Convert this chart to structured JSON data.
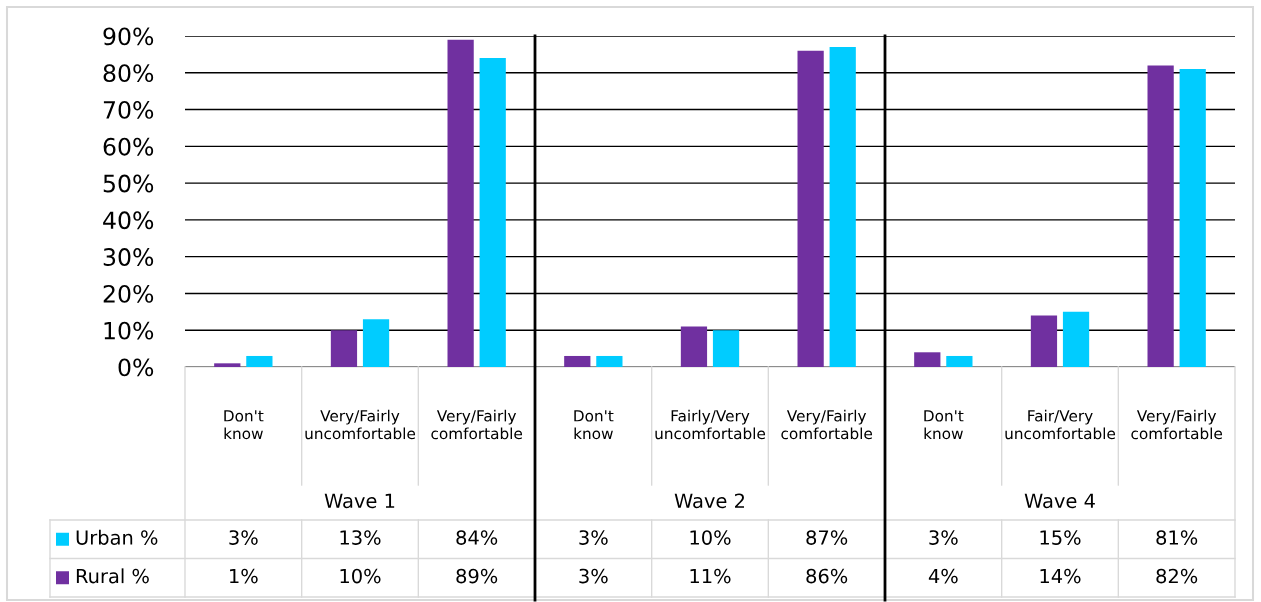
{
  "chart_data": {
    "type": "bar",
    "categories": [
      "Don't know",
      "Very/Fairly uncomfortable",
      "Very/Fairly comfortable",
      "Don't know",
      "Fairly/Very uncomfortable",
      "Very/Fairly comfortable",
      "Don't know",
      "Fair/Very uncomfortable",
      "Very/Fairly comfortable"
    ],
    "series": [
      {
        "name": "Rural %",
        "color": "#7030a0",
        "values": [
          1,
          10,
          89,
          3,
          11,
          86,
          4,
          14,
          82
        ],
        "value_labels": [
          "1%",
          "10%",
          "89%",
          "3%",
          "11%",
          "86%",
          "4%",
          "14%",
          "82%"
        ]
      },
      {
        "name": "Urban %",
        "color": "#00ccff",
        "values": [
          3,
          13,
          84,
          3,
          10,
          87,
          3,
          15,
          81
        ],
        "value_labels": [
          "3%",
          "13%",
          "84%",
          "3%",
          "10%",
          "87%",
          "3%",
          "15%",
          "81%"
        ]
      }
    ],
    "ylim": [
      0,
      90
    ],
    "yticks": [
      {
        "value": 0,
        "label": "0%"
      },
      {
        "value": 10,
        "label": "10%"
      },
      {
        "value": 20,
        "label": "20%"
      },
      {
        "value": 30,
        "label": "30%"
      },
      {
        "value": 40,
        "label": "40%"
      },
      {
        "value": 50,
        "label": "50%"
      },
      {
        "value": 60,
        "label": "60%"
      },
      {
        "value": 70,
        "label": "70%"
      },
      {
        "value": 80,
        "label": "80%"
      },
      {
        "value": 90,
        "label": "90%"
      }
    ],
    "grid": "y",
    "legend": "bottom left",
    "annotations": [
      "Wave 1",
      "Wave 2",
      "Wave 4"
    ]
  }
}
